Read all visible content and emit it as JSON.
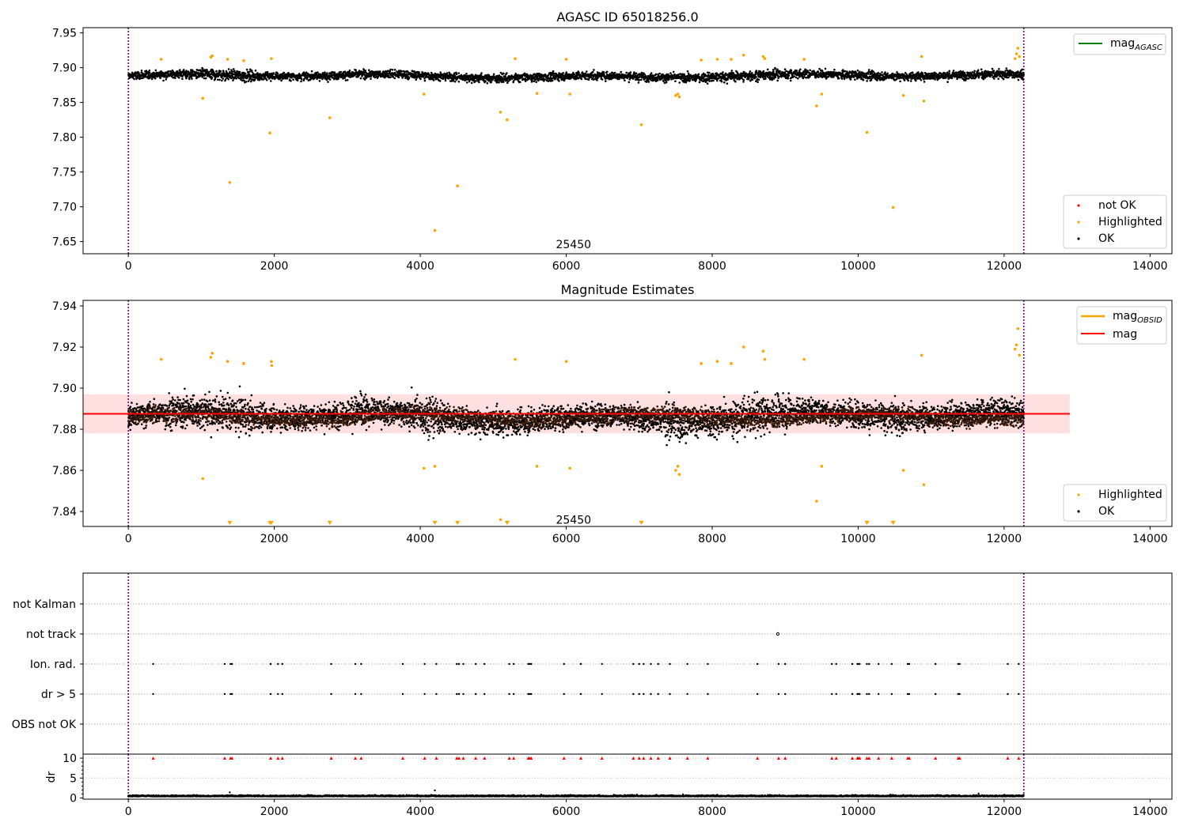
{
  "chart_data": [
    {
      "type": "scatter",
      "title": "AGASC ID 65018256.0",
      "xlabel": "",
      "ylabel": "",
      "xlim": [
        -620,
        14300
      ],
      "ylim": [
        7.6325,
        7.9575
      ],
      "xticks": [
        0,
        2000,
        4000,
        6000,
        8000,
        10000,
        12000,
        14000
      ],
      "yticks": [
        7.65,
        7.7,
        7.75,
        7.8,
        7.85,
        7.9,
        7.95
      ],
      "ytick_labels": [
        "7.65",
        "7.70",
        "7.75",
        "7.80",
        "7.85",
        "7.90",
        "7.95"
      ],
      "vlines": [
        0,
        12270
      ],
      "annotation": {
        "text": "25450",
        "x": 6100,
        "y": 7.645
      },
      "legend_lines": [
        {
          "name": "mag",
          "sub": "AGASC",
          "color": "#008000"
        }
      ],
      "legend_points": [
        {
          "name": "not OK",
          "color": "#ff0000"
        },
        {
          "name": "Highlighted",
          "color": "#ffa500"
        },
        {
          "name": "OK",
          "color": "#000000"
        }
      ],
      "ok_band": {
        "x": [
          0,
          12270
        ],
        "center": 7.888,
        "spread": 0.0075
      },
      "highlighted": [
        [
          450,
          7.912
        ],
        [
          1020,
          7.856
        ],
        [
          1130,
          7.915
        ],
        [
          1150,
          7.917
        ],
        [
          1360,
          7.912
        ],
        [
          1390,
          7.735
        ],
        [
          1580,
          7.91
        ],
        [
          1940,
          7.806
        ],
        [
          1960,
          7.913
        ],
        [
          2760,
          7.828
        ],
        [
          4050,
          7.862
        ],
        [
          4200,
          7.666
        ],
        [
          4510,
          7.73
        ],
        [
          5100,
          7.836
        ],
        [
          5190,
          7.825
        ],
        [
          5300,
          7.913
        ],
        [
          5600,
          7.863
        ],
        [
          6000,
          7.912
        ],
        [
          6050,
          7.862
        ],
        [
          7030,
          7.818
        ],
        [
          7500,
          7.86
        ],
        [
          7530,
          7.862
        ],
        [
          7550,
          7.858
        ],
        [
          7850,
          7.911
        ],
        [
          8070,
          7.912
        ],
        [
          8260,
          7.912
        ],
        [
          8430,
          7.918
        ],
        [
          8700,
          7.916
        ],
        [
          8720,
          7.913
        ],
        [
          9260,
          7.912
        ],
        [
          9430,
          7.845
        ],
        [
          9500,
          7.862
        ],
        [
          10120,
          7.807
        ],
        [
          10480,
          7.699
        ],
        [
          10620,
          7.86
        ],
        [
          10870,
          7.916
        ],
        [
          10900,
          7.852
        ],
        [
          12150,
          7.913
        ],
        [
          12170,
          7.92
        ],
        [
          12190,
          7.928
        ],
        [
          12210,
          7.916
        ]
      ]
    },
    {
      "type": "scatter",
      "title": "Magnitude Estimates",
      "xlabel": "",
      "ylabel": "",
      "xlim": [
        -620,
        14300
      ],
      "ylim": [
        7.8327,
        7.9427
      ],
      "xticks": [
        0,
        2000,
        4000,
        6000,
        8000,
        10000,
        12000,
        14000
      ],
      "yticks": [
        7.84,
        7.86,
        7.88,
        7.9,
        7.92,
        7.94
      ],
      "ytick_labels": [
        "7.84",
        "7.86",
        "7.88",
        "7.90",
        "7.92",
        "7.94"
      ],
      "vlines": [
        0,
        12270
      ],
      "annotation": {
        "text": "25450",
        "x": 6100,
        "y": 7.8355
      },
      "mean_mag": 7.8875,
      "mag_band": [
        7.878,
        7.897
      ],
      "band_x": [
        -620,
        12900
      ],
      "legend_lines": [
        {
          "name": "mag",
          "sub": "OBSID",
          "color": "#ffa500"
        },
        {
          "name": "mag",
          "sub": "",
          "color": "#ff0000"
        }
      ],
      "legend_points": [
        {
          "name": "Highlighted",
          "color": "#ffa500"
        },
        {
          "name": "OK",
          "color": "#000000"
        }
      ],
      "ok_band": {
        "x": [
          0,
          12270
        ],
        "center": 7.886,
        "spread": 0.0075
      },
      "highlighted": [
        [
          450,
          7.914
        ],
        [
          1020,
          7.856
        ],
        [
          1130,
          7.915
        ],
        [
          1150,
          7.917
        ],
        [
          1360,
          7.913
        ],
        [
          1580,
          7.912
        ],
        [
          1960,
          7.913
        ],
        [
          1965,
          7.911
        ],
        [
          4050,
          7.861
        ],
        [
          4200,
          7.862
        ],
        [
          5100,
          7.836
        ],
        [
          5300,
          7.914
        ],
        [
          5600,
          7.862
        ],
        [
          6000,
          7.913
        ],
        [
          6050,
          7.861
        ],
        [
          7500,
          7.86
        ],
        [
          7530,
          7.862
        ],
        [
          7550,
          7.858
        ],
        [
          7850,
          7.912
        ],
        [
          8070,
          7.913
        ],
        [
          8260,
          7.912
        ],
        [
          8430,
          7.92
        ],
        [
          8700,
          7.918
        ],
        [
          8720,
          7.914
        ],
        [
          9260,
          7.914
        ],
        [
          9430,
          7.845
        ],
        [
          9500,
          7.862
        ],
        [
          10620,
          7.86
        ],
        [
          10870,
          7.916
        ],
        [
          10900,
          7.853
        ],
        [
          12150,
          7.919
        ],
        [
          12170,
          7.921
        ],
        [
          12190,
          7.929
        ],
        [
          12210,
          7.916
        ]
      ],
      "clipped_low": [
        1390,
        1940,
        1960,
        2760,
        4200,
        4510,
        5190,
        7030,
        10120,
        10480
      ]
    },
    {
      "type": "scatter",
      "title": "",
      "xlabel": "",
      "ylabel": "",
      "xlim": [
        -620,
        14300
      ],
      "categories": [
        "not Kalman",
        "not track",
        "Ion. rad.",
        "dr > 5",
        "OBS not OK"
      ],
      "vlines": [
        0,
        12270
      ],
      "flag_x": [
        340,
        1320,
        1400,
        1420,
        1950,
        2050,
        2110,
        2780,
        3110,
        3190,
        3760,
        4060,
        4220,
        4500,
        4530,
        4590,
        4760,
        4880,
        5220,
        5280,
        5480,
        5500,
        5520,
        5970,
        6200,
        6490,
        6920,
        7000,
        7060,
        7160,
        7260,
        7420,
        7660,
        7940,
        8620,
        8910,
        9000,
        9640,
        9700,
        9920,
        9990,
        10000,
        10020,
        10120,
        10150,
        10280,
        10460,
        10680,
        10700,
        11060,
        11370,
        11390,
        12050,
        12200
      ],
      "not_track_x": [
        8900
      ]
    },
    {
      "type": "scatter",
      "title": "",
      "xlabel": "",
      "ylabel": "dr",
      "xlim": [
        -620,
        14300
      ],
      "ylim": [
        -0.3,
        11
      ],
      "xticks": [
        0,
        2000,
        4000,
        6000,
        8000,
        10000,
        12000,
        14000
      ],
      "yticks": [
        0,
        5,
        10
      ],
      "ytick_labels": [
        "0",
        "5",
        "10"
      ],
      "vlines": [
        0,
        12270
      ],
      "dr_baseline": 0.4,
      "dr_outliers": [
        [
          1390,
          1.4
        ],
        [
          4200,
          1.9
        ],
        [
          7600,
          0.9
        ],
        [
          11650,
          1.1
        ]
      ],
      "dr_clipped_y": 10
    }
  ]
}
